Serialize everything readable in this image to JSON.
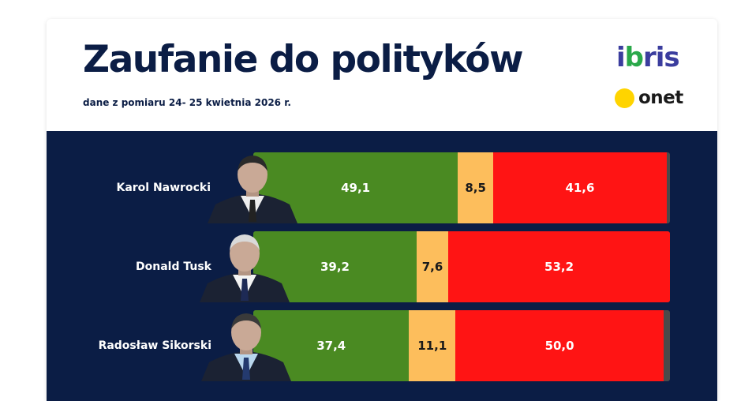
{
  "header": {
    "title": "Zaufanie do polityków",
    "subtitle": "dane z pomiaru 24- 25 kwietnia 2026 r.",
    "logo_ibris_a": "i",
    "logo_ibris_b": "b",
    "logo_ibris_c": "ris",
    "logo_onet": "onet"
  },
  "colors": {
    "trust": "#4a8a22",
    "undecided": "#fdbe5c",
    "distrust": "#ff1414",
    "panel": "#0b1d45"
  },
  "chart_data": {
    "type": "bar",
    "orientation": "horizontal",
    "stacked": true,
    "categories": [
      "Karol Nawrocki",
      "Donald Tusk",
      "Radosław Sikorski"
    ],
    "series": [
      {
        "values": [
          49.1,
          39.2,
          37.4
        ],
        "labels": [
          "49,1",
          "39,2",
          "37,4"
        ]
      },
      {
        "values": [
          8.5,
          7.6,
          11.1
        ],
        "labels": [
          "8,5",
          "7,6",
          "11,1"
        ]
      },
      {
        "values": [
          41.6,
          53.2,
          50.0
        ],
        "labels": [
          "41,6",
          "53,2",
          "50,0"
        ]
      }
    ],
    "xlim": [
      0,
      100
    ],
    "grid": false,
    "legend": "none"
  }
}
